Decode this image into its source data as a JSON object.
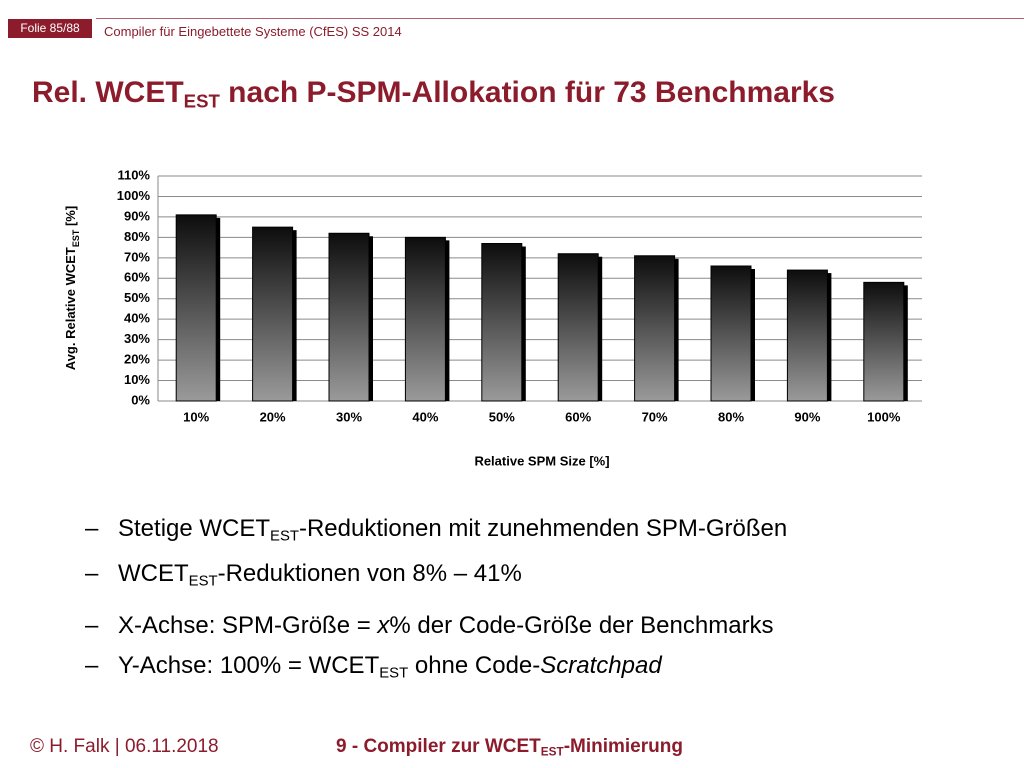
{
  "header": {
    "slide_number": "Folie 85/88",
    "course": "Compiler für Eingebettete Systeme (CfES) SS 2014"
  },
  "title": [
    {
      "text": "Rel. WCET"
    },
    {
      "text": "EST",
      "style": "sub"
    },
    {
      "text": " nach P-SPM-Allokation für 73 Benchmarks"
    }
  ],
  "chart_data": {
    "type": "bar",
    "categories": [
      "10%",
      "20%",
      "30%",
      "40%",
      "50%",
      "60%",
      "70%",
      "80%",
      "90%",
      "100%"
    ],
    "values": [
      91,
      85,
      82,
      80,
      77,
      72,
      71,
      66,
      64,
      58
    ],
    "gradient": [
      "#0d0d0d",
      "#9a9a9a"
    ],
    "ylim": [
      0,
      110
    ],
    "yticks": [
      {
        "value": 0,
        "label": "0%"
      },
      {
        "value": 10,
        "label": "10%"
      },
      {
        "value": 20,
        "label": "20%"
      },
      {
        "value": 30,
        "label": "30%"
      },
      {
        "value": 40,
        "label": "40%"
      },
      {
        "value": 50,
        "label": "50%"
      },
      {
        "value": 60,
        "label": "60%"
      },
      {
        "value": 70,
        "label": "70%"
      },
      {
        "value": 80,
        "label": "80%"
      },
      {
        "value": 90,
        "label": "90%"
      },
      {
        "value": 100,
        "label": "100%"
      },
      {
        "value": 110,
        "label": "110%"
      }
    ],
    "grid": true,
    "xlabel": "Relative SPM Size [%]",
    "ylabel": [
      {
        "text": "Avg. Relative WCET"
      },
      {
        "text": "EST",
        "style": "sub"
      },
      {
        "text": " [%]"
      }
    ]
  },
  "bullet_marker": "–",
  "bullets": [
    [
      {
        "text": "Stetige WCET"
      },
      {
        "text": "EST",
        "style": "sub"
      },
      {
        "text": "-Reduktionen mit zunehmenden SPM-Größen"
      }
    ],
    [
      {
        "text": "WCET"
      },
      {
        "text": "EST",
        "style": "sub"
      },
      {
        "text": "-Reduktionen von 8% – 41%"
      }
    ],
    [
      {
        "text": "X-Achse: SPM-Größe = "
      },
      {
        "text": "x",
        "style": "italic"
      },
      {
        "text": "% der Code-Größe der Benchmarks"
      }
    ],
    [
      {
        "text": "Y-Achse: 100% = WCET"
      },
      {
        "text": "EST",
        "style": "sub"
      },
      {
        "text": " ohne Code-"
      },
      {
        "text": "Scratchpad",
        "style": "italic"
      }
    ]
  ],
  "footer": {
    "author": "© H. Falk | 06.11.2018",
    "chapter": [
      {
        "text": "9 - Compiler zur WCET"
      },
      {
        "text": "EST",
        "style": "sub"
      },
      {
        "text": "-Minimierung"
      }
    ]
  }
}
